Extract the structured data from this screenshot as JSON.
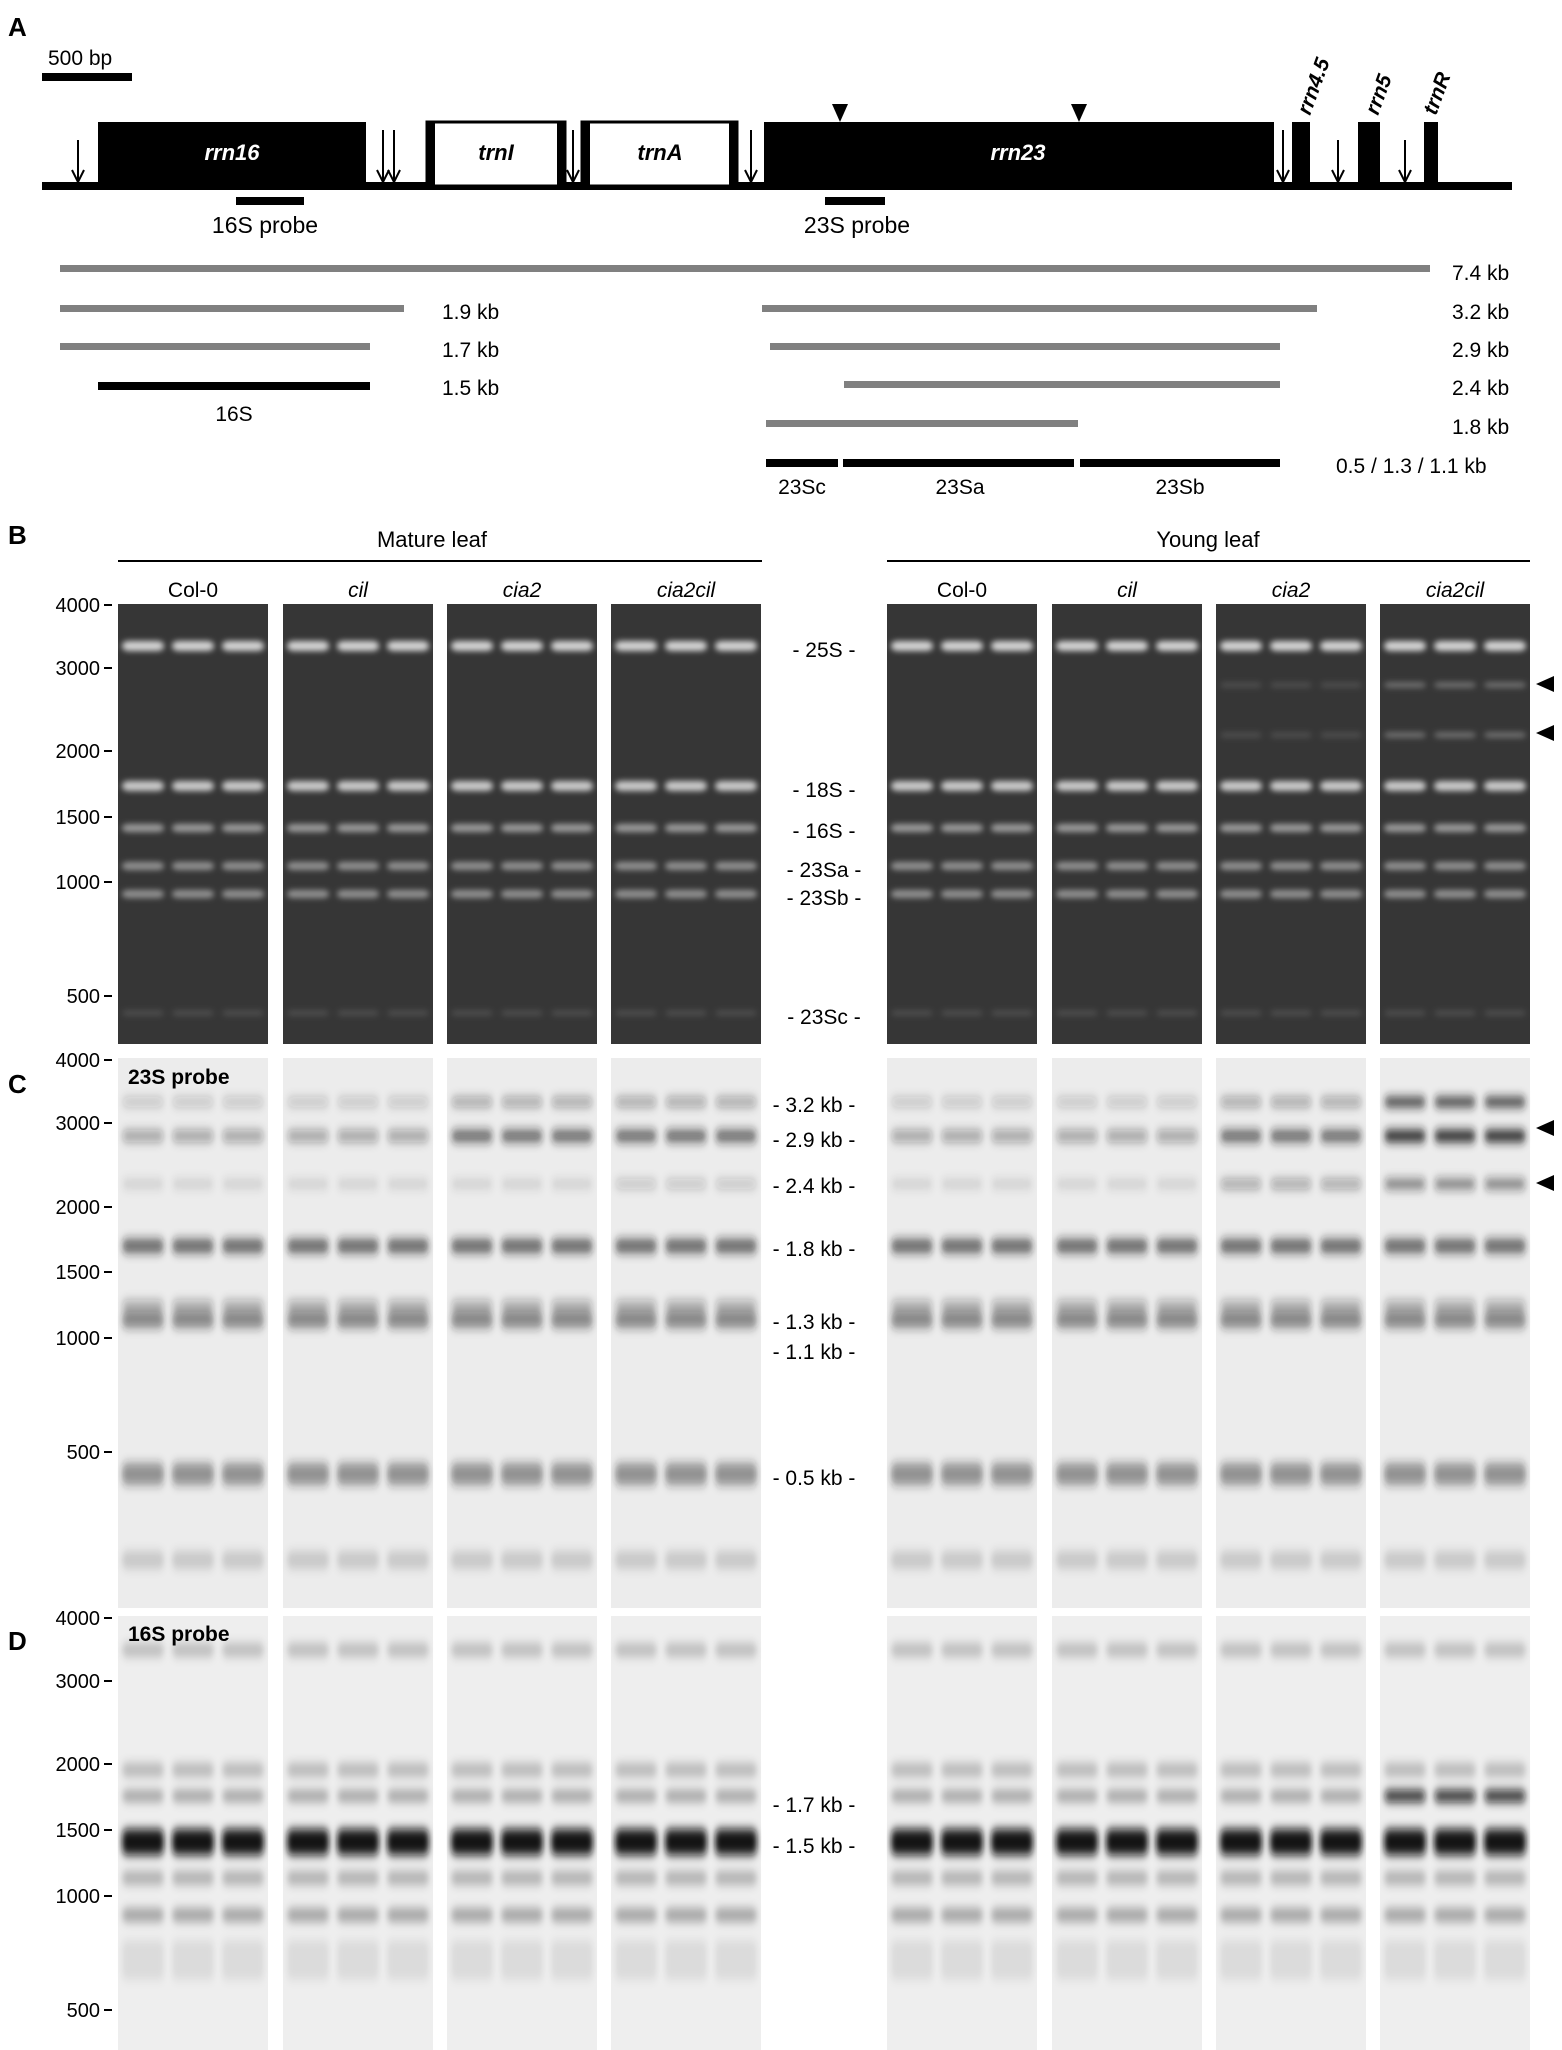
{
  "panelA": {
    "letter": "A",
    "scale_label": "500 bp",
    "genes": [
      {
        "name": "rrn16",
        "italic": true,
        "style": "filled"
      },
      {
        "name": "trnI",
        "italic": true,
        "style": "outline"
      },
      {
        "name": "trnA",
        "italic": true,
        "style": "outline"
      },
      {
        "name": "rrn23",
        "italic": true,
        "style": "filled"
      },
      {
        "name": "rrn4.5",
        "italic": true,
        "style": "filled"
      },
      {
        "name": "rrn5",
        "italic": true,
        "style": "filled"
      },
      {
        "name": "trnR",
        "italic": true,
        "style": "filled"
      }
    ],
    "probes": [
      "16S probe",
      "23S probe"
    ],
    "transcripts_left": [
      "1.9 kb",
      "1.7 kb",
      "1.5 kb"
    ],
    "transcripts_right": [
      "7.4 kb",
      "3.2 kb",
      "2.9 kb",
      "2.4 kb",
      "1.8 kb",
      "0.5 / 1.3 / 1.1 kb"
    ],
    "mature_labels": [
      "16S",
      "23Sc",
      "23Sa",
      "23Sb"
    ]
  },
  "groups": {
    "mature": "Mature leaf",
    "young": "Young leaf"
  },
  "genotypes": [
    {
      "label": "Col-0",
      "italic": false
    },
    {
      "label": "cil",
      "italic": true
    },
    {
      "label": "cia2",
      "italic": true
    },
    {
      "label": "cia2cil",
      "italic": true
    }
  ],
  "panelB": {
    "letter": "B",
    "size_markers": [
      "4000",
      "3000",
      "2000",
      "1500",
      "1000",
      "500"
    ],
    "band_labels": [
      "- 25S -",
      "- 18S -",
      "- 16S -",
      "- 23Sa -",
      "- 23Sb -",
      "- 23Sc -"
    ]
  },
  "panelC": {
    "letter": "C",
    "probe": "23S probe",
    "size_markers": [
      "4000",
      "3000",
      "2000",
      "1500",
      "1000",
      "500"
    ],
    "band_labels": [
      "- 3.2 kb -",
      "- 2.9 kb -",
      "- 2.4 kb -",
      "- 1.8 kb -",
      "- 1.3 kb -",
      "- 1.1 kb -",
      "- 0.5 kb -"
    ]
  },
  "panelD": {
    "letter": "D",
    "probe": "16S probe",
    "size_markers": [
      "4000",
      "3000",
      "2000",
      "1500",
      "1000",
      "500"
    ],
    "band_labels": [
      "- 1.7 kb -",
      "- 1.5 kb -"
    ]
  },
  "colors": {
    "gel_bg": "#3a3a3a",
    "gel_band": "#e6e6e6",
    "blot_bg": "#ececec",
    "blot_band": "#222222",
    "transcript_gray": "#808080"
  }
}
